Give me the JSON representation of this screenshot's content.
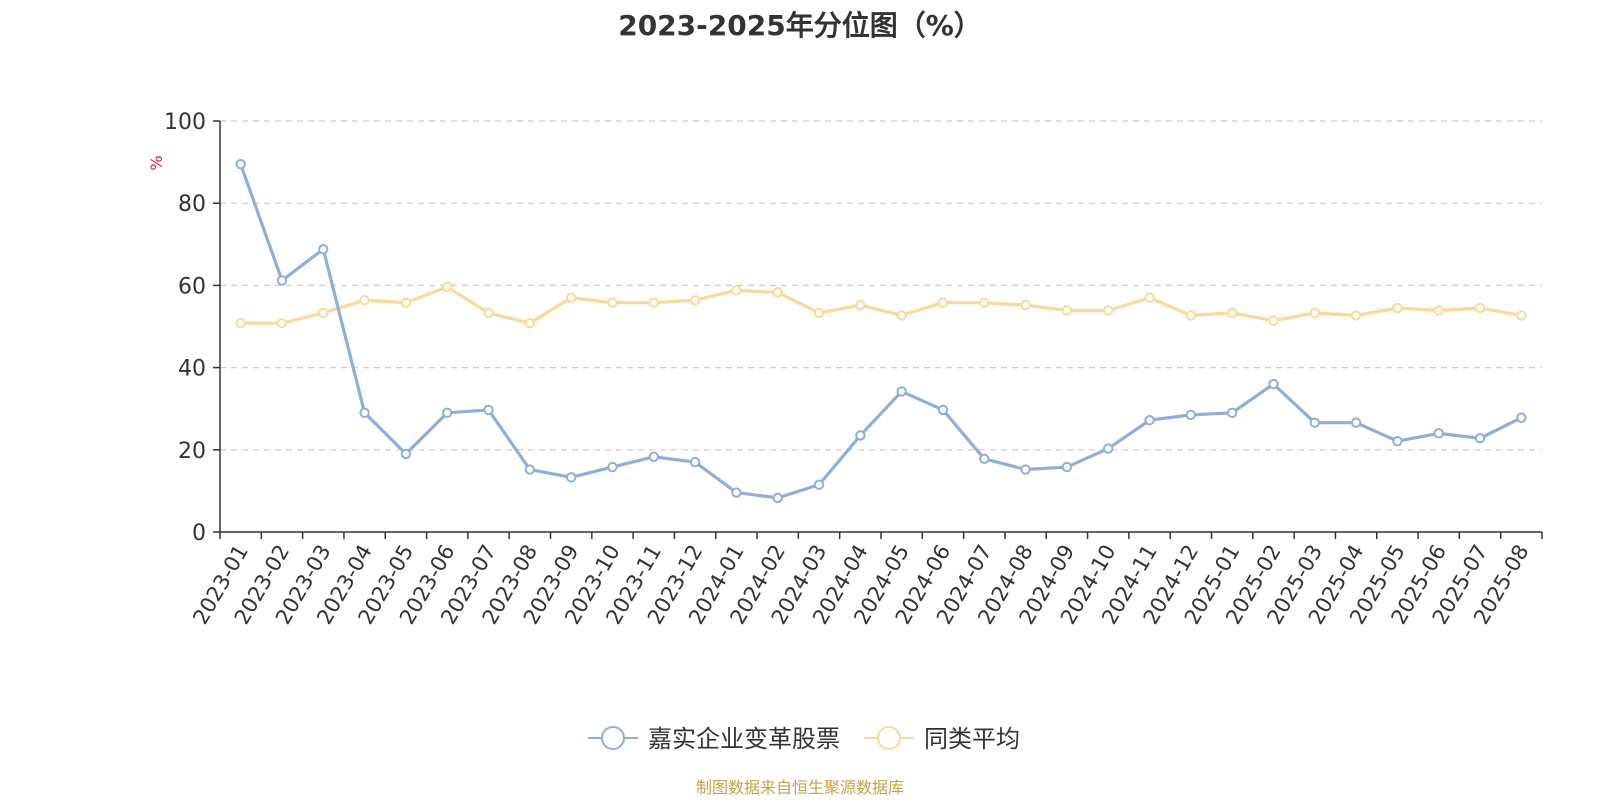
{
  "chart_data": {
    "type": "line",
    "title": "2023-2025年分位图（%）",
    "ylabel": "%",
    "xlabel": "",
    "ylim": [
      0,
      100
    ],
    "yticks": [
      "0",
      "20",
      "40",
      "60",
      "80",
      "100"
    ],
    "categories": [
      "2023-01",
      "2023-02",
      "2023-03",
      "2023-04",
      "2023-05",
      "2023-06",
      "2023-07",
      "2023-08",
      "2023-09",
      "2023-10",
      "2023-11",
      "2023-12",
      "2024-01",
      "2024-02",
      "2024-03",
      "2024-04",
      "2024-05",
      "2024-06",
      "2024-07",
      "2024-08",
      "2024-09",
      "2024-10",
      "2024-11",
      "2024-12",
      "2025-01",
      "2025-02",
      "2025-03",
      "2025-04",
      "2025-05",
      "2025-06",
      "2025-07",
      "2025-08"
    ],
    "series": [
      {
        "name": "嘉实企业变革股票",
        "color": "#8fafdb",
        "values": [
          89.5,
          61.2,
          68.8,
          29.0,
          19.0,
          29.0,
          29.7,
          15.2,
          13.3,
          15.8,
          18.3,
          17.0,
          9.6,
          8.3,
          11.5,
          23.5,
          34.2,
          29.7,
          17.8,
          15.2,
          15.8,
          20.3,
          27.2,
          28.5,
          29.0,
          36.0,
          26.6,
          26.6,
          22.1,
          24.0,
          22.8,
          27.8
        ]
      },
      {
        "name": "同类平均",
        "color": "#fcd998",
        "values": [
          50.8,
          50.8,
          53.3,
          56.4,
          55.8,
          59.6,
          53.3,
          50.8,
          57.0,
          55.8,
          55.8,
          56.4,
          58.8,
          58.3,
          53.3,
          55.2,
          52.7,
          55.8,
          55.8,
          55.2,
          53.9,
          53.9,
          57.0,
          52.7,
          53.3,
          51.4,
          53.3,
          52.7,
          54.5,
          53.9,
          54.5,
          52.7
        ]
      }
    ],
    "grid": true,
    "legend": "bottom-center"
  },
  "source_note": "制图数据来自恒生聚源数据库",
  "colors": {
    "source_note": "#c8a24a",
    "ylabel": "#e02020",
    "axis": "#333333",
    "grid": "#cccccc"
  }
}
